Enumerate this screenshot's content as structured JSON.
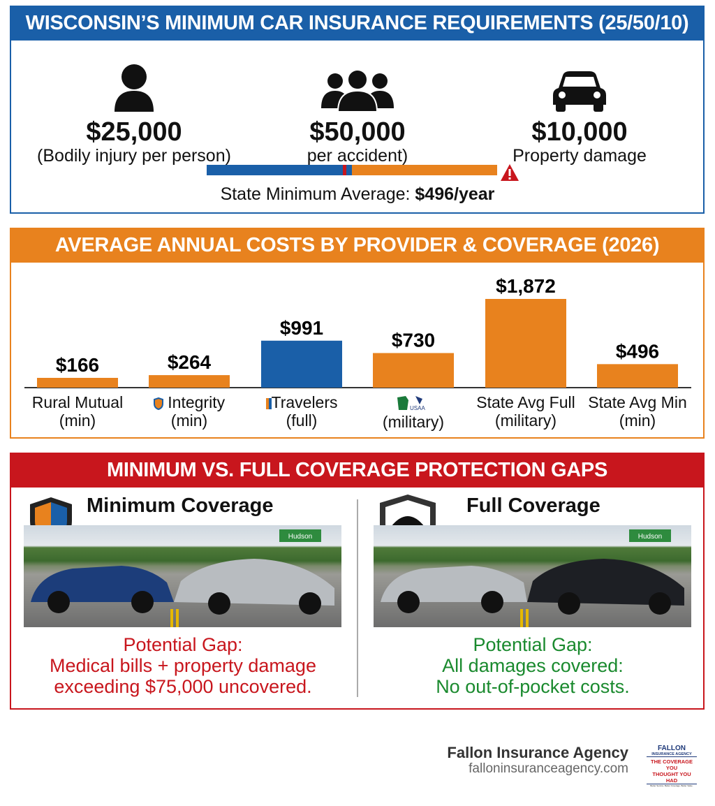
{
  "section1": {
    "title": "WISCONSIN’S MINIMUM CAR INSURANCE REQUIREMENTS (25/50/10)",
    "items": [
      {
        "icon": "person-icon",
        "amount": "$25,000",
        "label": "(Bodily injury per person)"
      },
      {
        "icon": "group-icon",
        "amount": "$50,000",
        "label": "per accident)"
      },
      {
        "icon": "car-icon",
        "amount": "$10,000",
        "label": "Property damage"
      }
    ],
    "avg_label": "State Minimum Average:",
    "avg_value": "$496/year",
    "colors": {
      "blue": "#1a5fa8",
      "orange": "#e8821e",
      "red": "#c8161d"
    }
  },
  "section2": {
    "title": "AVERAGE ANNUAL COSTS BY PROVIDER & COVERAGE (2026)"
  },
  "chart_data": {
    "type": "bar",
    "categories": [
      "Rural Mutual (min)",
      "Integrity (min)",
      "Travelers (full)",
      "(military)",
      "State Avg Full (military)",
      "State Avg Min (min)"
    ],
    "labels": [
      [
        "Rural Mutual",
        "(min)"
      ],
      [
        "Integrity",
        "(min)"
      ],
      [
        "Travelers",
        "(full)"
      ],
      [
        "",
        "(military)"
      ],
      [
        "State Avg Full",
        "(military)"
      ],
      [
        "State Avg Min",
        "(min)"
      ]
    ],
    "values": [
      166,
      264,
      991,
      730,
      1872,
      496
    ],
    "data_labels": [
      "$166",
      "$264",
      "$991",
      "$730",
      "$1,872",
      "$496"
    ],
    "colors": [
      "#e8821e",
      "#e8821e",
      "#1a5fa8",
      "#e8821e",
      "#e8821e",
      "#e8821e"
    ],
    "title": "",
    "xlabel": "",
    "ylabel": "",
    "ylim": [
      0,
      1872
    ],
    "grid": false
  },
  "section3": {
    "title": "MINIMUM VS. FULL COVERAGE PROTECTION GAPS",
    "left": {
      "title": "Minimum Coverage",
      "sign": "Hudson",
      "gap_lines": [
        "Potential Gap:",
        "Medical bills + property damage",
        "exceeding $75,000 uncovered."
      ],
      "color": "#c8161d"
    },
    "right": {
      "title": "Full Coverage",
      "sign": "Hudson",
      "gap_lines": [
        "Potential Gap:",
        "All damages covered:",
        "No out-of-pocket costs."
      ],
      "color": "#1a8a2e"
    }
  },
  "footer": {
    "name": "Fallon Insurance Agency",
    "url": "falloninsuranceagency.com",
    "logo": {
      "line1": "FALLON",
      "line2": "INSURANCE AGENCY",
      "line3": "THE COVERAGE YOU",
      "line4": "THOUGHT YOU HAD",
      "tagline": "Better Service. Better Coverage. Better Value."
    }
  }
}
